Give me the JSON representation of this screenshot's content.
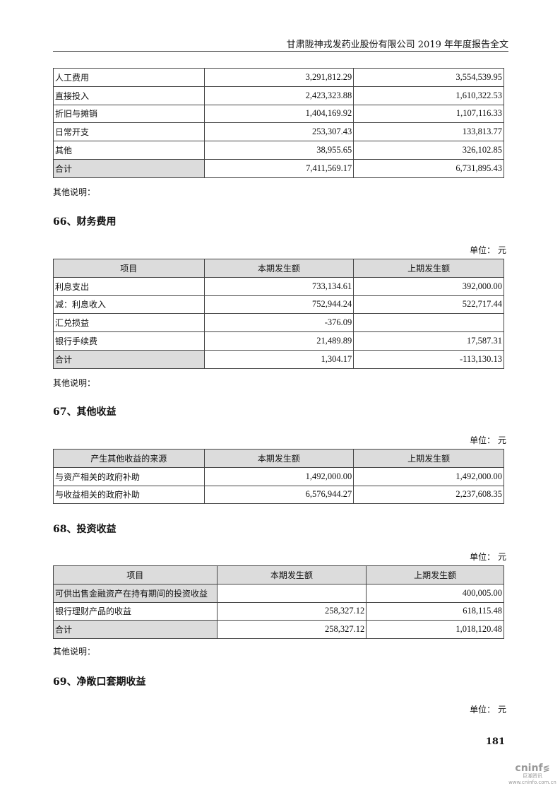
{
  "header": {
    "title": "甘肃陇神戎发药业股份有限公司 2019 年年度报告全文"
  },
  "table_rd": {
    "rows": [
      {
        "label": "人工费用",
        "current": "3,291,812.29",
        "prior": "3,554,539.95"
      },
      {
        "label": "直接投入",
        "current": "2,423,323.88",
        "prior": "1,610,322.53"
      },
      {
        "label": "折旧与摊销",
        "current": "1,404,169.92",
        "prior": "1,107,116.33"
      },
      {
        "label": "日常开支",
        "current": "253,307.43",
        "prior": "133,813.77"
      },
      {
        "label": "其他",
        "current": "38,955.65",
        "prior": "326,102.85"
      },
      {
        "label": "合计",
        "current": "7,411,569.17",
        "prior": "6,731,895.43"
      }
    ],
    "note": "其他说明："
  },
  "s66": {
    "heading": "66、财务费用",
    "unit": "单位： 元",
    "columns": [
      "项目",
      "本期发生额",
      "上期发生额"
    ],
    "rows": [
      {
        "label": "利息支出",
        "current": "733,134.61",
        "prior": "392,000.00"
      },
      {
        "label": "减：利息收入",
        "current": "752,944.24",
        "prior": "522,717.44"
      },
      {
        "label": "汇兑损益",
        "current": "-376.09",
        "prior": ""
      },
      {
        "label": "银行手续费",
        "current": "21,489.89",
        "prior": "17,587.31"
      },
      {
        "label": "合计",
        "current": "1,304.17",
        "prior": "-113,130.13"
      }
    ],
    "note": "其他说明："
  },
  "s67": {
    "heading": "67、其他收益",
    "unit": "单位： 元",
    "columns": [
      "产生其他收益的来源",
      "本期发生额",
      "上期发生额"
    ],
    "rows": [
      {
        "label": "与资产相关的政府补助",
        "current": "1,492,000.00",
        "prior": "1,492,000.00"
      },
      {
        "label": "与收益相关的政府补助",
        "current": "6,576,944.27",
        "prior": "2,237,608.35"
      }
    ]
  },
  "s68": {
    "heading": "68、投资收益",
    "unit": "单位： 元",
    "columns": [
      "项目",
      "本期发生额",
      "上期发生额"
    ],
    "rows": [
      {
        "label": "可供出售金融资产在持有期间的投资收益",
        "current": "",
        "prior": "400,005.00"
      },
      {
        "label": "银行理财产品的收益",
        "current": "258,327.12",
        "prior": "618,115.48"
      },
      {
        "label": "合计",
        "current": "258,327.12",
        "prior": "1,018,120.48"
      }
    ],
    "note": "其他说明："
  },
  "s69": {
    "heading": "69、净敞口套期收益",
    "unit": "单位： 元"
  },
  "page_number": "181",
  "logo": {
    "brand": "cninf",
    "cn": "巨潮资讯",
    "url": "www.cninfo.com.cn"
  }
}
